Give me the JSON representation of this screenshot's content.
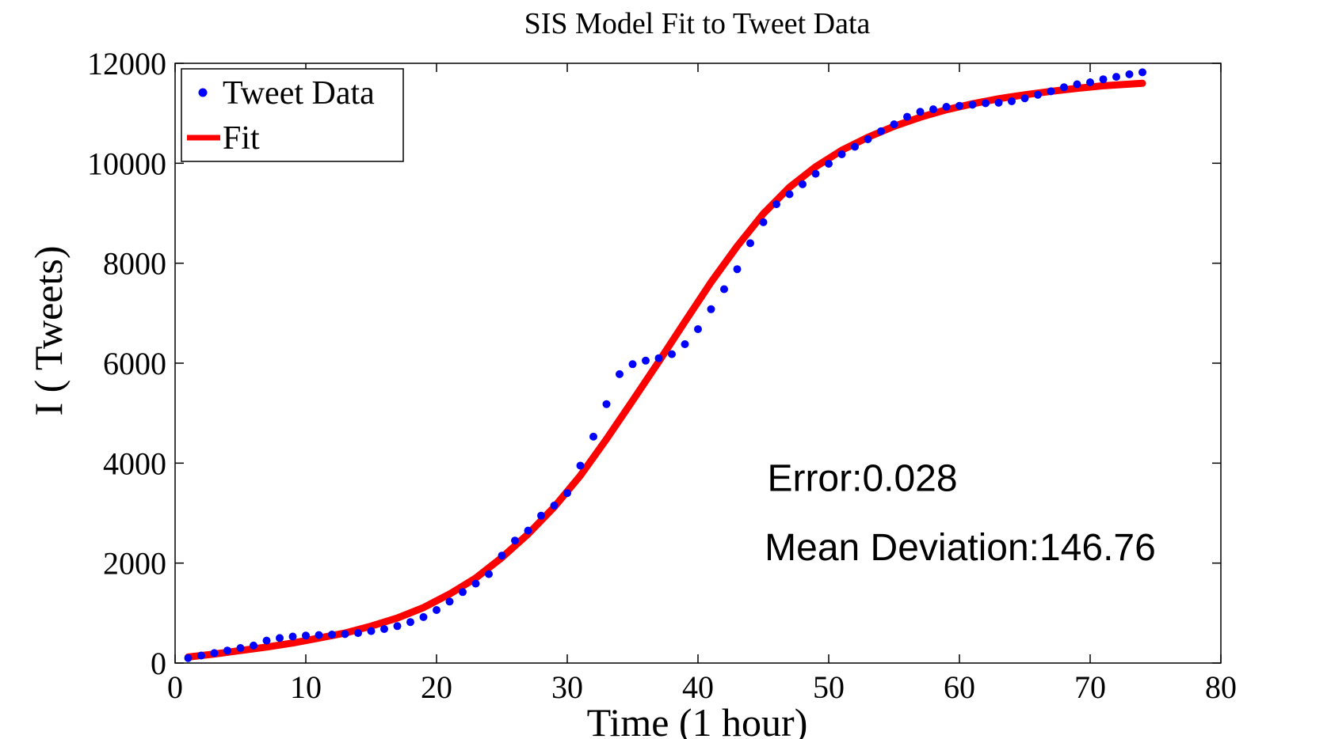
{
  "chart_data": {
    "type": "scatter",
    "title": "SIS Model Fit to Tweet Data",
    "xlabel": "Time (1 hour)",
    "ylabel": "I ( Tweets)",
    "xlim": [
      0,
      80
    ],
    "ylim": [
      0,
      12000
    ],
    "xticks": [
      0,
      10,
      20,
      30,
      40,
      50,
      60,
      70,
      80
    ],
    "yticks": [
      0,
      2000,
      4000,
      6000,
      8000,
      10000,
      12000
    ],
    "grid": false,
    "legend_position": "top-left",
    "series": [
      {
        "name": "Tweet Data",
        "kind": "markers",
        "color": "#0000ff",
        "x": [
          1,
          2,
          3,
          4,
          5,
          6,
          7,
          8,
          9,
          10,
          11,
          12,
          13,
          14,
          15,
          16,
          17,
          18,
          19,
          20,
          21,
          22,
          23,
          24,
          25,
          26,
          27,
          28,
          29,
          30,
          31,
          32,
          33,
          34,
          35,
          36,
          37,
          38,
          39,
          40,
          41,
          42,
          43,
          44,
          45,
          46,
          47,
          48,
          49,
          50,
          51,
          52,
          53,
          54,
          55,
          56,
          57,
          58,
          59,
          60,
          61,
          62,
          63,
          64,
          65,
          66,
          67,
          68,
          69,
          70,
          71,
          72,
          73,
          74
        ],
        "y": [
          100,
          150,
          200,
          250,
          300,
          350,
          450,
          500,
          530,
          550,
          560,
          570,
          580,
          600,
          640,
          680,
          740,
          820,
          920,
          1060,
          1230,
          1420,
          1590,
          1780,
          2150,
          2450,
          2650,
          2950,
          3150,
          3400,
          3950,
          4530,
          5180,
          5780,
          5980,
          6050,
          6100,
          6180,
          6380,
          6680,
          7080,
          7480,
          7880,
          8400,
          8820,
          9180,
          9380,
          9580,
          9790,
          9990,
          10180,
          10330,
          10480,
          10640,
          10780,
          10930,
          11030,
          11080,
          11130,
          11150,
          11170,
          11200,
          11210,
          11240,
          11300,
          11370,
          11440,
          11520,
          11580,
          11620,
          11680,
          11730,
          11780,
          11820
        ]
      },
      {
        "name": "Fit",
        "kind": "line",
        "color": "#ff0000",
        "x": [
          1,
          3,
          5,
          7,
          9,
          11,
          13,
          15,
          17,
          19,
          21,
          23,
          25,
          27,
          29,
          31,
          33,
          35,
          37,
          39,
          41,
          43,
          45,
          47,
          49,
          51,
          53,
          55,
          57,
          59,
          61,
          63,
          65,
          67,
          69,
          71,
          74
        ],
        "y": [
          120,
          180,
          250,
          320,
          400,
          500,
          600,
          740,
          900,
          1110,
          1380,
          1700,
          2110,
          2580,
          3120,
          3750,
          4480,
          5250,
          6030,
          6830,
          7620,
          8340,
          8990,
          9520,
          9930,
          10260,
          10520,
          10740,
          10920,
          11070,
          11190,
          11290,
          11370,
          11440,
          11500,
          11550,
          11600
        ]
      }
    ],
    "annotations": [
      {
        "text": "Error:0.028",
        "x": 45.3,
        "y": 3700
      },
      {
        "text": "Mean Deviation:146.76",
        "x": 45.1,
        "y": 2310
      }
    ]
  }
}
